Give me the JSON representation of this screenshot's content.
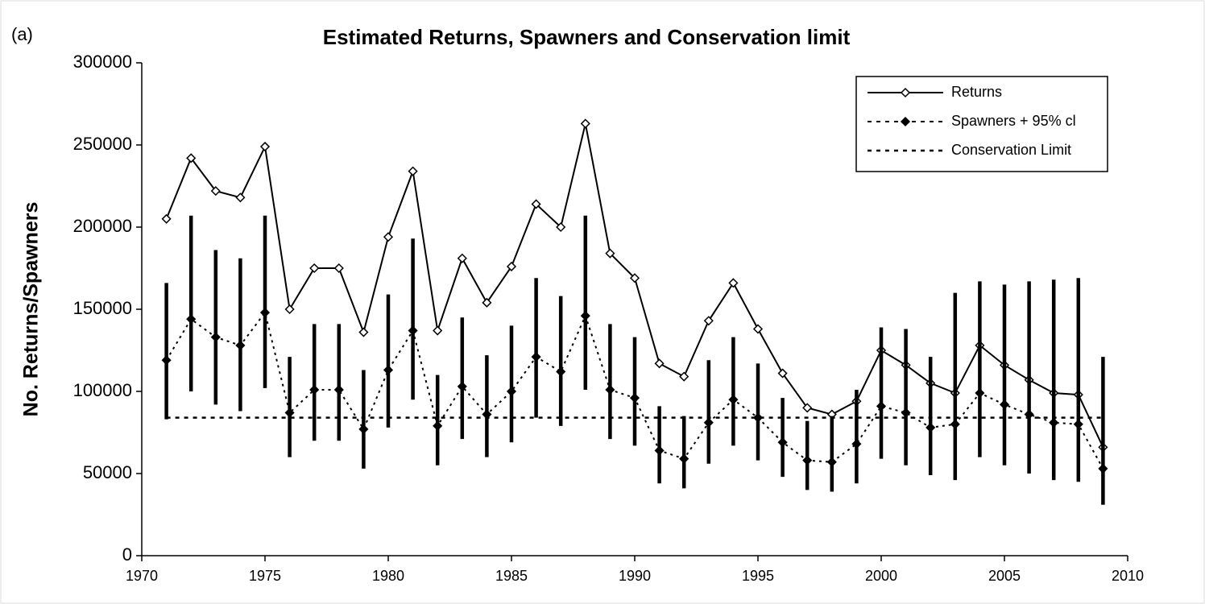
{
  "chart_data": {
    "type": "line",
    "panel_label": "(a)",
    "title": "Estimated Returns, Spawners and Conservation limit",
    "y_label": "No. Returns/Spawners",
    "x": [
      1971,
      1972,
      1973,
      1974,
      1975,
      1976,
      1977,
      1978,
      1979,
      1980,
      1981,
      1982,
      1983,
      1984,
      1985,
      1986,
      1987,
      1988,
      1989,
      1990,
      1991,
      1992,
      1993,
      1994,
      1995,
      1996,
      1997,
      1998,
      1999,
      2000,
      2001,
      2002,
      2003,
      2004,
      2005,
      2006,
      2007,
      2008,
      2009
    ],
    "series": [
      {
        "name": "Returns",
        "color": "#000000",
        "line": "solid",
        "marker": "open-diamond",
        "values": [
          205000,
          242000,
          222000,
          218000,
          249000,
          150000,
          175000,
          175000,
          136000,
          194000,
          234000,
          137000,
          181000,
          154000,
          176000,
          214000,
          200000,
          263000,
          184000,
          169000,
          117000,
          109000,
          143000,
          166000,
          138000,
          111000,
          90000,
          86000,
          94000,
          125000,
          116000,
          105000,
          99000,
          128000,
          116000,
          107000,
          99000,
          98000,
          66000
        ]
      },
      {
        "name": "Spawners + 95% cl",
        "color": "#000000",
        "line": "dotted",
        "marker": "filled-diamond",
        "values": [
          119000,
          144000,
          133000,
          128000,
          148000,
          87000,
          101000,
          101000,
          77000,
          113000,
          137000,
          79000,
          103000,
          86000,
          100000,
          121000,
          112000,
          146000,
          101000,
          96000,
          64000,
          59000,
          81000,
          95000,
          84000,
          69000,
          58000,
          57000,
          68000,
          91000,
          87000,
          78000,
          80000,
          99000,
          92000,
          86000,
          81000,
          80000,
          53000
        ],
        "lower": [
          83000,
          100000,
          92000,
          88000,
          102000,
          60000,
          70000,
          70000,
          53000,
          78000,
          95000,
          55000,
          71000,
          60000,
          69000,
          84000,
          79000,
          101000,
          71000,
          67000,
          44000,
          41000,
          56000,
          67000,
          58000,
          48000,
          40000,
          39000,
          44000,
          59000,
          55000,
          49000,
          46000,
          60000,
          55000,
          50000,
          46000,
          45000,
          31000
        ],
        "upper": [
          166000,
          207000,
          186000,
          181000,
          207000,
          121000,
          141000,
          141000,
          113000,
          159000,
          193000,
          110000,
          145000,
          122000,
          140000,
          169000,
          158000,
          207000,
          141000,
          133000,
          91000,
          85000,
          119000,
          133000,
          117000,
          96000,
          82000,
          85000,
          101000,
          139000,
          138000,
          121000,
          160000,
          167000,
          165000,
          167000,
          168000,
          169000,
          121000
        ]
      }
    ],
    "reference_line": {
      "name": "Conservation Limit",
      "value": 84000,
      "color": "#000000",
      "line": "dotted",
      "x_range": [
        1971,
        2009
      ]
    },
    "xlim": [
      1970,
      2010
    ],
    "xticks": [
      1970,
      1975,
      1980,
      1985,
      1990,
      1995,
      2000,
      2005,
      2010
    ],
    "ylim": [
      0,
      300000
    ],
    "yticks": [
      0,
      50000,
      100000,
      150000,
      200000,
      250000,
      300000
    ],
    "grid": false,
    "legend": "upper right"
  }
}
